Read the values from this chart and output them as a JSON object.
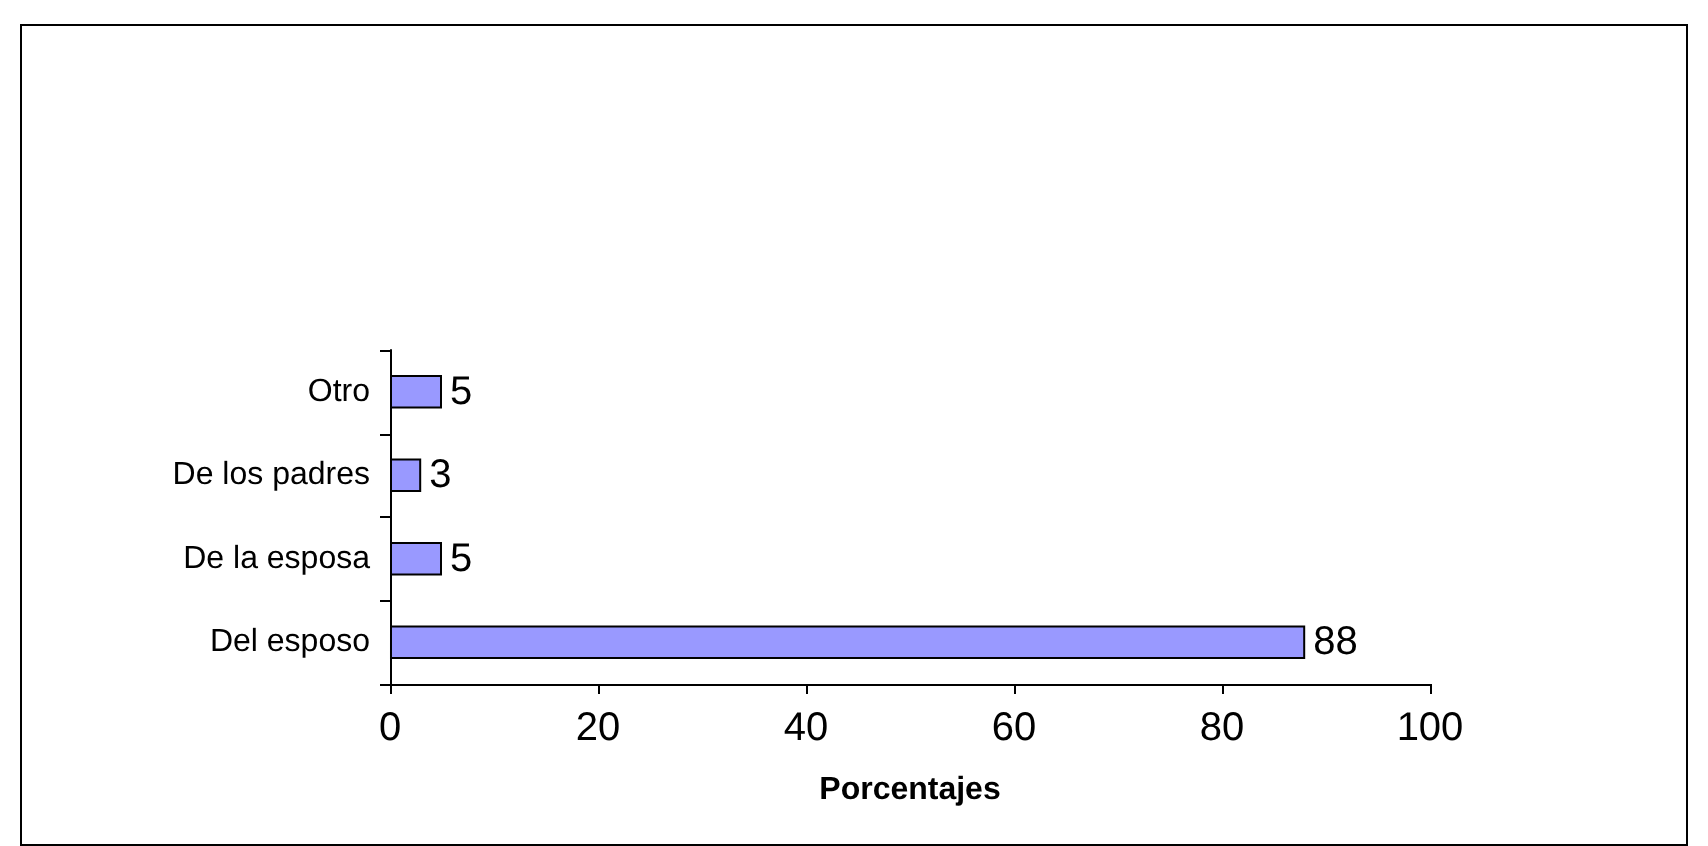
{
  "chart_data": {
    "type": "bar",
    "orientation": "horizontal",
    "xlabel": "Porcentajes",
    "categories": [
      "Otro",
      "De los padres",
      "De la esposa",
      "Del esposo"
    ],
    "values": [
      5,
      3,
      5,
      88
    ],
    "color": "#9999ff",
    "xlim": [
      0,
      100
    ],
    "xticks": [
      0,
      20,
      40,
      60,
      80,
      100
    ],
    "grid": false,
    "data_labels": true
  }
}
